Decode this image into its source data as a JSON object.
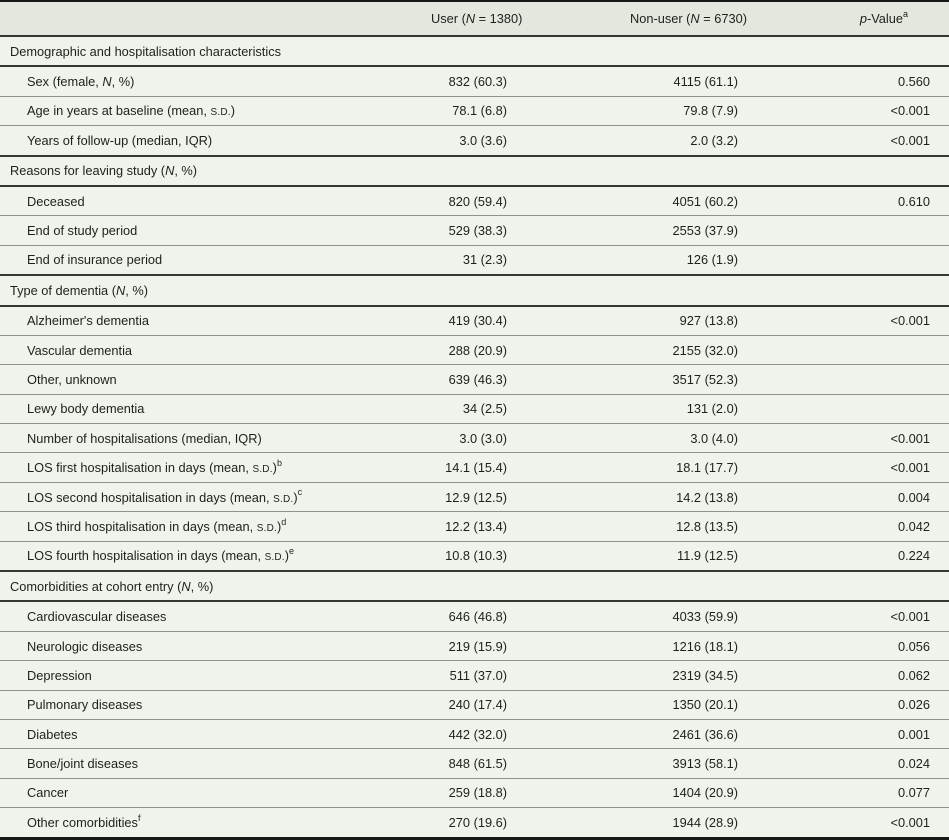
{
  "table": {
    "header": {
      "stub": "",
      "user": "User (*N* = 1380)",
      "nonuser": "Non-user (*N* = 6730)",
      "pvalue": "*p*-Value^a^"
    },
    "colors": {
      "header_bg": "#e3e8df",
      "body_bg": "#eff3eb",
      "rule_dark": "#343834",
      "rule_light": "#8d928c",
      "frame": "#161816",
      "text": "#1d201d"
    },
    "rows": [
      {
        "type": "section",
        "label": "Demographic and hospitalisation characteristics"
      },
      {
        "type": "data",
        "label": "Sex (female, *N*, %)",
        "user": "832 (60.3)",
        "nonuser": "4115 (61.1)",
        "p": "0.560"
      },
      {
        "type": "data",
        "label": "Age in years at baseline (mean, ~S.D.~)",
        "user": "78.1 (6.8)",
        "nonuser": "79.8 (7.9)",
        "p": "<0.001"
      },
      {
        "type": "data",
        "label": "Years of follow-up (median, IQR)",
        "user": "3.0 (3.6)",
        "nonuser": "2.0 (3.2)",
        "p": "<0.001"
      },
      {
        "type": "section",
        "label": "Reasons for leaving study (*N*, %)"
      },
      {
        "type": "data",
        "label": "Deceased",
        "user": "820 (59.4)",
        "nonuser": "4051 (60.2)",
        "p": "0.610"
      },
      {
        "type": "data",
        "label": "End of study period",
        "user": "529 (38.3)",
        "nonuser": "2553 (37.9)",
        "p": ""
      },
      {
        "type": "data",
        "label": "End of insurance period",
        "user": "31 (2.3)",
        "nonuser": "126 (1.9)",
        "p": ""
      },
      {
        "type": "section",
        "label": "Type of dementia (*N*, %)"
      },
      {
        "type": "data",
        "label": "Alzheimer's dementia",
        "user": "419 (30.4)",
        "nonuser": "927 (13.8)",
        "p": "<0.001"
      },
      {
        "type": "data",
        "label": "Vascular dementia",
        "user": "288 (20.9)",
        "nonuser": "2155 (32.0)",
        "p": ""
      },
      {
        "type": "data",
        "label": "Other, unknown",
        "user": "639 (46.3)",
        "nonuser": "3517 (52.3)",
        "p": ""
      },
      {
        "type": "data",
        "label": "Lewy body dementia",
        "user": "34 (2.5)",
        "nonuser": "131 (2.0)",
        "p": ""
      },
      {
        "type": "data",
        "label": "Number of hospitalisations (median, IQR)",
        "user": "3.0 (3.0)",
        "nonuser": "3.0 (4.0)",
        "p": "<0.001"
      },
      {
        "type": "data",
        "label": "LOS first hospitalisation in days (mean, ~S.D.~)^b^",
        "user": "14.1 (15.4)",
        "nonuser": "18.1 (17.7)",
        "p": "<0.001"
      },
      {
        "type": "data",
        "label": "LOS second hospitalisation in days (mean, ~S.D.~)^c^",
        "user": "12.9 (12.5)",
        "nonuser": "14.2 (13.8)",
        "p": "0.004"
      },
      {
        "type": "data",
        "label": "LOS third hospitalisation in days (mean, ~S.D.~)^d^",
        "user": "12.2 (13.4)",
        "nonuser": "12.8 (13.5)",
        "p": "0.042"
      },
      {
        "type": "data",
        "label": "LOS fourth hospitalisation in days (mean, ~S.D.~)^e^",
        "user": "10.8 (10.3)",
        "nonuser": "11.9 (12.5)",
        "p": "0.224"
      },
      {
        "type": "section",
        "label": "Comorbidities at cohort entry (*N*, %)"
      },
      {
        "type": "data",
        "label": "Cardiovascular diseases",
        "user": "646 (46.8)",
        "nonuser": "4033 (59.9)",
        "p": "<0.001"
      },
      {
        "type": "data",
        "label": "Neurologic diseases",
        "user": "219 (15.9)",
        "nonuser": "1216 (18.1)",
        "p": "0.056"
      },
      {
        "type": "data",
        "label": "Depression",
        "user": "511 (37.0)",
        "nonuser": "2319 (34.5)",
        "p": "0.062"
      },
      {
        "type": "data",
        "label": "Pulmonary diseases",
        "user": "240 (17.4)",
        "nonuser": "1350 (20.1)",
        "p": "0.026"
      },
      {
        "type": "data",
        "label": "Diabetes",
        "user": "442 (32.0)",
        "nonuser": "2461 (36.6)",
        "p": "0.001"
      },
      {
        "type": "data",
        "label": "Bone/joint diseases",
        "user": "848 (61.5)",
        "nonuser": "3913 (58.1)",
        "p": "0.024"
      },
      {
        "type": "data",
        "label": "Cancer",
        "user": "259 (18.8)",
        "nonuser": "1404 (20.9)",
        "p": "0.077"
      },
      {
        "type": "data",
        "label": "Other comorbidities^f^",
        "user": "270 (19.6)",
        "nonuser": "1944 (28.9)",
        "p": "<0.001"
      }
    ]
  }
}
